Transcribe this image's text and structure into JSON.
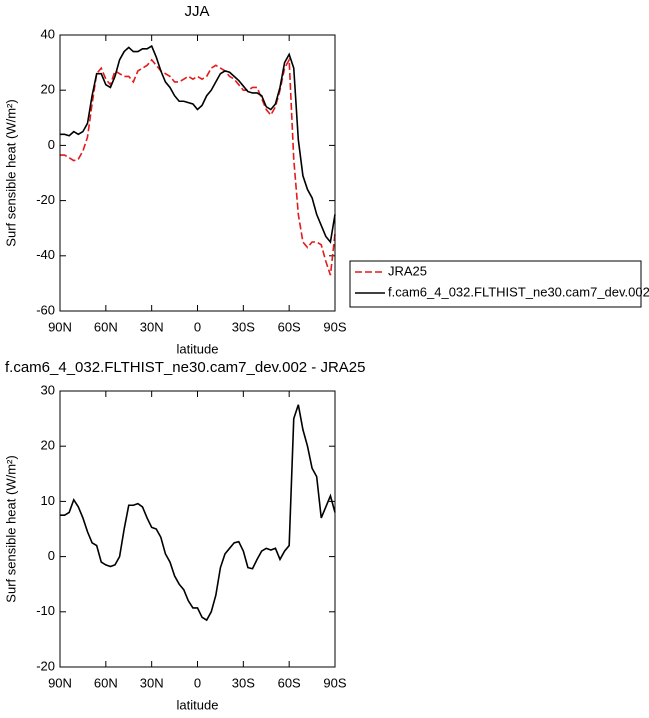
{
  "chart_data": [
    {
      "type": "line",
      "title": "JJA",
      "xlabel": "latitude",
      "ylabel": "Surf sensible heat (W/m²)",
      "x": [
        90,
        87,
        84,
        81,
        78,
        75,
        72,
        69,
        66,
        63,
        60,
        57,
        54,
        51,
        48,
        45,
        42,
        39,
        36,
        33,
        30,
        27,
        24,
        21,
        18,
        15,
        12,
        9,
        6,
        3,
        0,
        -3,
        -6,
        -9,
        -12,
        -15,
        -18,
        -21,
        -24,
        -27,
        -30,
        -33,
        -36,
        -39,
        -42,
        -45,
        -48,
        -51,
        -54,
        -57,
        -60,
        -63,
        -66,
        -69,
        -72,
        -75,
        -78,
        -81,
        -84,
        -87,
        -90
      ],
      "xlim": [
        90,
        -90
      ],
      "xticks": [
        {
          "value": 90,
          "label": "90N"
        },
        {
          "value": 60,
          "label": "60N"
        },
        {
          "value": 30,
          "label": "30N"
        },
        0,
        {
          "value": -30,
          "label": "30S"
        },
        {
          "value": -60,
          "label": "60S"
        },
        {
          "value": -90,
          "label": "90S"
        }
      ],
      "ylim": [
        -60,
        40
      ],
      "yticks": [
        -60,
        -40,
        -20,
        0,
        20,
        40
      ],
      "legend": "outside-right",
      "series": [
        {
          "name": "JRA25",
          "color": "#e41a1c",
          "linestyle": "dashed",
          "values": [
            -3.5,
            -3.5,
            -4.5,
            -5.5,
            -5,
            -2,
            3,
            15,
            26,
            28,
            24,
            22,
            27,
            26,
            25,
            25,
            23,
            27,
            28,
            29,
            31,
            29,
            27,
            26,
            25,
            23,
            23,
            24,
            25,
            24,
            25,
            24,
            25,
            28,
            29,
            28,
            27,
            25,
            24,
            22,
            20,
            20,
            21,
            21,
            17,
            13,
            11,
            14,
            20,
            28,
            31,
            -5,
            -25,
            -35,
            -37,
            -35,
            -35,
            -36,
            -42,
            -47,
            -32
          ]
        },
        {
          "name": "f.cam6_4_032.FLTHIST_ne30.cam7_dev.002",
          "color": "#000000",
          "linestyle": "solid",
          "values": [
            4,
            4,
            3.5,
            5,
            4,
            5,
            8,
            18,
            26,
            26,
            22,
            21,
            25,
            31,
            34,
            35.5,
            34,
            34,
            35,
            35,
            36,
            32,
            27,
            23,
            21,
            18,
            16,
            16,
            15.5,
            15,
            13,
            14.5,
            18,
            20,
            23,
            26,
            27,
            26.5,
            25,
            23.5,
            21.5,
            19.5,
            19,
            19,
            18,
            14,
            13,
            15,
            21,
            30,
            33,
            28,
            2,
            -11,
            -16,
            -19,
            -25,
            -29,
            -33,
            -35,
            -25
          ]
        }
      ]
    },
    {
      "type": "line",
      "title": "f.cam6_4_032.FLTHIST_ne30.cam7_dev.002 - JRA25",
      "xlabel": "latitude",
      "ylabel": "Surf sensible heat (W/m²)",
      "x": [
        90,
        87,
        84,
        81,
        78,
        75,
        72,
        69,
        66,
        63,
        60,
        57,
        54,
        51,
        48,
        45,
        42,
        39,
        36,
        33,
        30,
        27,
        24,
        21,
        18,
        15,
        12,
        9,
        6,
        3,
        0,
        -3,
        -6,
        -9,
        -12,
        -15,
        -18,
        -21,
        -24,
        -27,
        -30,
        -33,
        -36,
        -39,
        -42,
        -45,
        -48,
        -51,
        -54,
        -57,
        -60,
        -63,
        -66,
        -69,
        -72,
        -75,
        -78,
        -81,
        -84,
        -87,
        -90
      ],
      "xlim": [
        90,
        -90
      ],
      "xticks": [
        {
          "value": 90,
          "label": "90N"
        },
        {
          "value": 60,
          "label": "60N"
        },
        {
          "value": 30,
          "label": "30N"
        },
        0,
        {
          "value": -30,
          "label": "30S"
        },
        {
          "value": -60,
          "label": "60S"
        },
        {
          "value": -90,
          "label": "90S"
        }
      ],
      "ylim": [
        -20,
        30
      ],
      "yticks": [
        -20,
        -10,
        0,
        10,
        20,
        30
      ],
      "series": [
        {
          "color": "#000000",
          "linestyle": "solid",
          "values": [
            7.5,
            7.5,
            8,
            10.3,
            9,
            7,
            4.5,
            2.5,
            2,
            -1,
            -1.5,
            -1.8,
            -1.5,
            0,
            5,
            9.3,
            9.3,
            9.6,
            9,
            7,
            5.3,
            5,
            3.5,
            0.5,
            -1,
            -3.5,
            -5,
            -6,
            -8,
            -9.3,
            -9.3,
            -11,
            -11.5,
            -10,
            -7,
            -2,
            0.5,
            1.5,
            2.5,
            2.7,
            1,
            -2,
            -2.2,
            -0.5,
            1,
            1.5,
            1.2,
            1.5,
            -0.5,
            1,
            2,
            25,
            27.5,
            23,
            20,
            16,
            14.5,
            7,
            9,
            11,
            8
          ]
        }
      ]
    }
  ]
}
